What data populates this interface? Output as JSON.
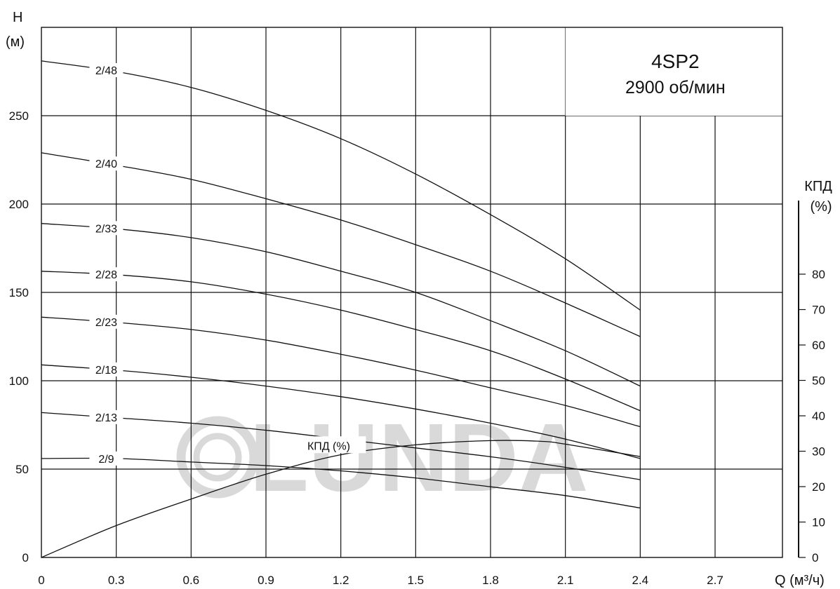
{
  "chart_data": {
    "type": "line",
    "title": "4SP2",
    "subtitle": "2900 об/мин",
    "watermark": "LUNDA",
    "xlabel": "Q (м³/ч)",
    "ylabel_line1": "H",
    "ylabel_line2": "(м)",
    "y2label_line1": "КПД",
    "y2label_line2": "(%)",
    "xlim": [
      0,
      2.97
    ],
    "ylim": [
      0,
      300
    ],
    "y2lim": [
      0,
      100
    ],
    "x_ticks": [
      "0",
      "0.3",
      "0.6",
      "0.9",
      "1.2",
      "1.5",
      "1.8",
      "2.1",
      "2.4",
      "2.7"
    ],
    "y_ticks": [
      "0",
      "50",
      "100",
      "150",
      "200",
      "250"
    ],
    "y2_ticks": [
      "0",
      "10",
      "20",
      "30",
      "40",
      "50",
      "60",
      "70",
      "80"
    ],
    "grid": true,
    "series": [
      {
        "name": "2/48",
        "label_x": 0.26,
        "x": [
          0,
          0.3,
          0.6,
          0.9,
          1.2,
          1.5,
          1.8,
          2.1,
          2.4
        ],
        "y": [
          281,
          275,
          266,
          253,
          237,
          217,
          194,
          169,
          140
        ]
      },
      {
        "name": "2/40",
        "label_x": 0.26,
        "x": [
          0,
          0.3,
          0.6,
          0.9,
          1.2,
          1.5,
          1.8,
          2.1,
          2.4
        ],
        "y": [
          229,
          222,
          214,
          203,
          191,
          177,
          162,
          144,
          125
        ]
      },
      {
        "name": "2/33",
        "label_x": 0.26,
        "x": [
          0,
          0.3,
          0.6,
          0.9,
          1.2,
          1.5,
          1.8,
          2.1,
          2.4
        ],
        "y": [
          189,
          186,
          181,
          173,
          162,
          150,
          134,
          117,
          97
        ]
      },
      {
        "name": "2/28",
        "label_x": 0.26,
        "x": [
          0,
          0.3,
          0.6,
          0.9,
          1.2,
          1.5,
          1.8,
          2.1,
          2.4
        ],
        "y": [
          162,
          160,
          156,
          149,
          140,
          129,
          117,
          101,
          83
        ]
      },
      {
        "name": "2/23",
        "label_x": 0.26,
        "x": [
          0,
          0.3,
          0.6,
          0.9,
          1.2,
          1.5,
          1.8,
          2.1,
          2.4
        ],
        "y": [
          136,
          133,
          129,
          123,
          115,
          106,
          96,
          86,
          74
        ]
      },
      {
        "name": "2/18",
        "label_x": 0.26,
        "x": [
          0,
          0.3,
          0.6,
          0.9,
          1.2,
          1.5,
          1.8,
          2.1,
          2.4
        ],
        "y": [
          109,
          106,
          102,
          97,
          91,
          84,
          76,
          67,
          56
        ]
      },
      {
        "name": "2/13",
        "label_x": 0.26,
        "x": [
          0,
          0.3,
          0.6,
          0.9,
          1.2,
          1.5,
          1.8,
          2.1,
          2.4
        ],
        "y": [
          82,
          79,
          76,
          72,
          67,
          62,
          57,
          51,
          44
        ]
      },
      {
        "name": "2/9",
        "label_x": 0.26,
        "x": [
          0,
          0.3,
          0.6,
          0.9,
          1.2,
          1.5,
          1.8,
          2.1,
          2.4
        ],
        "y": [
          56,
          56,
          54,
          52,
          49,
          45,
          40,
          35,
          28
        ]
      }
    ],
    "efficiency": {
      "name": "КПД (%)",
      "x": [
        0,
        0.3,
        0.6,
        0.9,
        1.2,
        1.5,
        1.8,
        2.0,
        2.1,
        2.4
      ],
      "y": [
        0,
        9,
        16.5,
        23.5,
        29,
        31.8,
        33,
        32.8,
        32,
        28.5
      ]
    }
  }
}
